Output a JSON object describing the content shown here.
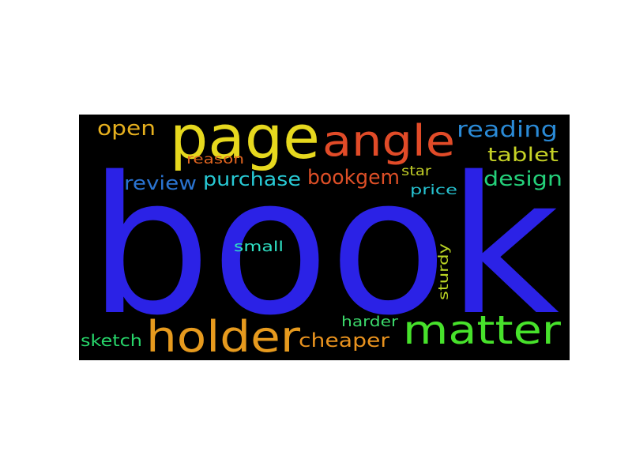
{
  "word_cloud": {
    "background": "#000000",
    "words": [
      {
        "text": "book",
        "color": "#2b22e6"
      },
      {
        "text": "page",
        "color": "#e6d81e"
      },
      {
        "text": "angle",
        "color": "#e14b28"
      },
      {
        "text": "holder",
        "color": "#e69a1e"
      },
      {
        "text": "matter",
        "color": "#47e22b"
      },
      {
        "text": "reading",
        "color": "#2a8ad6"
      },
      {
        "text": "open",
        "color": "#e6b01e"
      },
      {
        "text": "tablet",
        "color": "#c6d226"
      },
      {
        "text": "design",
        "color": "#24d07a"
      },
      {
        "text": "purchase",
        "color": "#28c9d4"
      },
      {
        "text": "bookgem",
        "color": "#de4f27"
      },
      {
        "text": "review",
        "color": "#2a73d0"
      },
      {
        "text": "reason",
        "color": "#e0641f"
      },
      {
        "text": "star",
        "color": "#c0cc27"
      },
      {
        "text": "price",
        "color": "#26c2d0"
      },
      {
        "text": "small",
        "color": "#2fe0c4"
      },
      {
        "text": "sturdy",
        "color": "#bcd624"
      },
      {
        "text": "harder",
        "color": "#3bd86a"
      },
      {
        "text": "cheaper",
        "color": "#e8921e"
      },
      {
        "text": "sketch",
        "color": "#27d56a"
      }
    ]
  }
}
